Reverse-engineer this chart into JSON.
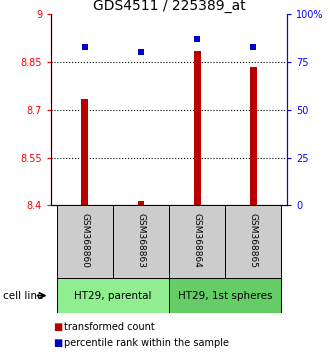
{
  "title": "GDS4511 / 225389_at",
  "samples": [
    "GSM368860",
    "GSM368863",
    "GSM368864",
    "GSM368865"
  ],
  "bar_values": [
    8.735,
    8.415,
    8.885,
    8.835
  ],
  "percentile_values": [
    83,
    80,
    87,
    83
  ],
  "ymin": 8.4,
  "ymax": 9.0,
  "yticks": [
    8.4,
    8.55,
    8.7,
    8.85,
    9.0
  ],
  "ytick_labels": [
    "8.4",
    "8.55",
    "8.7",
    "8.85",
    "9"
  ],
  "right_yticks": [
    0,
    25,
    50,
    75,
    100
  ],
  "right_ytick_labels": [
    "0",
    "25",
    "50",
    "75",
    "100%"
  ],
  "bar_color": "#bb0000",
  "scatter_color": "#0000cc",
  "groups": [
    {
      "label": "HT29, parental",
      "indices": [
        0,
        1
      ],
      "color": "#90ee90"
    },
    {
      "label": "HT29, 1st spheres",
      "indices": [
        2,
        3
      ],
      "color": "#66cc66"
    }
  ],
  "sample_box_color": "#cccccc",
  "legend_bar_label": "transformed count",
  "legend_scatter_label": "percentile rank within the sample",
  "cell_line_label": "cell line",
  "bar_width": 0.12
}
